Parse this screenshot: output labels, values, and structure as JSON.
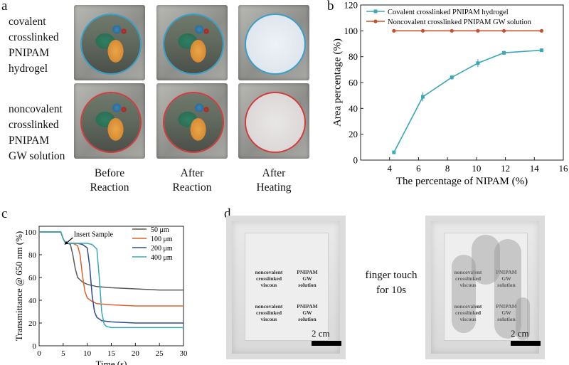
{
  "panel_labels": {
    "a": "a",
    "b": "b",
    "c": "c",
    "d": "d"
  },
  "panel_a": {
    "row_labels": {
      "covalent": [
        "covalent",
        "crosslinked",
        "PNIPAM",
        "hydrogel"
      ],
      "noncovalent": [
        "noncovalent",
        "crosslinked",
        "PNIPAM",
        "GW solution"
      ]
    },
    "column_labels": [
      [
        "Before",
        "Reaction"
      ],
      [
        "After",
        "Reaction"
      ],
      [
        "After",
        "Heating"
      ]
    ]
  },
  "panel_d": {
    "middle_text": [
      "finger touch",
      "for 10s"
    ],
    "scale_label": "2 cm",
    "glass_text": [
      [
        "noncovalent",
        "crosslinked",
        "viscous"
      ],
      [
        "PNIPAM",
        "GW",
        "solution"
      ],
      [
        "noncovalent",
        "crosslinked",
        "viscous"
      ],
      [
        "PNIPAM",
        "GW",
        "solution"
      ]
    ]
  },
  "chart_data": [
    {
      "panel": "b",
      "type": "line",
      "xlabel": "The percentage of NIPAM (%)",
      "ylabel": "Area percentage (%)",
      "xlim": [
        2,
        16
      ],
      "ylim": [
        0,
        120
      ],
      "xticks": [
        4,
        6,
        8,
        10,
        12,
        14,
        16
      ],
      "yticks": [
        0,
        20,
        40,
        60,
        80,
        100,
        120
      ],
      "legend_position": "top-left",
      "series": [
        {
          "name": "Covalent crosslinked PNIPAM hydrogel",
          "color": "#3aa8b8",
          "marker": "square",
          "x": [
            4.3,
            6.3,
            8.3,
            10.1,
            11.9,
            14.5
          ],
          "y": [
            6,
            49,
            64,
            75,
            83,
            85
          ],
          "err": [
            0.8,
            3.5,
            1.8,
            3,
            1.5,
            0.8
          ]
        },
        {
          "name": "Noncovalent crosslinked  PNIPAM GW solution",
          "color": "#c8502e",
          "marker": "circle",
          "x": [
            4.3,
            6.3,
            8.3,
            10.1,
            11.9,
            14.5
          ],
          "y": [
            100,
            100,
            100,
            100,
            100,
            100
          ]
        }
      ]
    },
    {
      "panel": "c",
      "type": "line",
      "xlabel": "Time (s)",
      "ylabel": "Transmittance @ 650 nm (%)",
      "xlim": [
        0,
        30
      ],
      "ylim": [
        0,
        105
      ],
      "xticks": [
        0,
        5,
        10,
        15,
        20,
        25,
        30
      ],
      "yticks": [
        0,
        20,
        40,
        60,
        80,
        100
      ],
      "annotation": "Insert Sample",
      "legend_position": "top-right",
      "series": [
        {
          "name": "50 μm",
          "color": "#5a5a5a",
          "x": [
            0,
            4.5,
            5,
            5.5,
            6,
            6.5,
            7,
            7.5,
            8,
            9,
            10,
            12,
            15,
            20,
            25,
            30
          ],
          "y": [
            100,
            100,
            94,
            90,
            90,
            89,
            80,
            68,
            60,
            56,
            54,
            52,
            51,
            50,
            49,
            49
          ]
        },
        {
          "name": "100 μm",
          "color": "#e0612c",
          "x": [
            0,
            4.5,
            5,
            5.5,
            6,
            7,
            8,
            8.5,
            9,
            9.5,
            10,
            11,
            12,
            15,
            20,
            25,
            30
          ],
          "y": [
            100,
            100,
            94,
            90,
            90,
            90,
            88,
            80,
            62,
            48,
            42,
            39,
            37,
            36,
            35,
            35,
            35
          ]
        },
        {
          "name": "200 μm",
          "color": "#2f4b8f",
          "x": [
            0,
            4.5,
            5,
            5.5,
            6,
            7,
            8,
            9,
            10,
            10.5,
            11,
            11.5,
            12,
            13,
            15,
            20,
            25,
            30
          ],
          "y": [
            100,
            100,
            94,
            90,
            90,
            90,
            90,
            89,
            86,
            70,
            45,
            30,
            25,
            22,
            21,
            20,
            20,
            20
          ]
        },
        {
          "name": "400 μm",
          "color": "#3aa8b8",
          "x": [
            0,
            4.5,
            5,
            5.5,
            6,
            7,
            8,
            9,
            10,
            11,
            12,
            12.5,
            13,
            13.5,
            14,
            15,
            20,
            25,
            30
          ],
          "y": [
            100,
            100,
            94,
            90,
            90,
            90,
            90,
            90,
            90,
            89,
            85,
            60,
            30,
            19,
            17,
            16,
            16,
            16,
            16
          ]
        }
      ]
    }
  ]
}
